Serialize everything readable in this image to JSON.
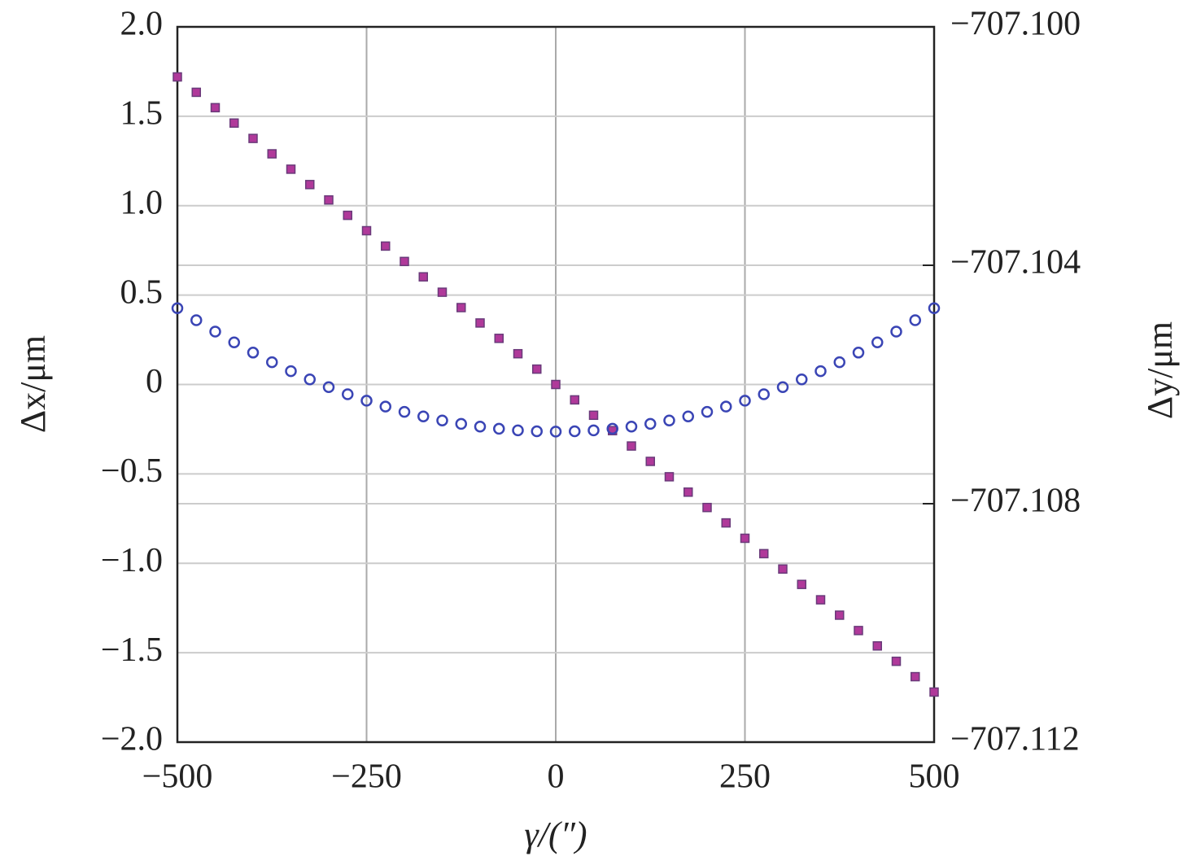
{
  "chart_data": {
    "type": "scatter",
    "xlabel": "γ/(″)",
    "ylabel": "Δx/μm",
    "y2label": "Δy/μm",
    "xlim": [
      -500,
      500
    ],
    "xticks": [
      {
        "value": -500,
        "label": "−500"
      },
      {
        "value": -250,
        "label": "−250"
      },
      0,
      250,
      500
    ],
    "ylim": [
      -2.0,
      2.0
    ],
    "yticks": [
      {
        "value": -2.0,
        "label": "−2.0"
      },
      {
        "value": -1.5,
        "label": "−1.5"
      },
      {
        "value": -1.0,
        "label": "−1.0"
      },
      {
        "value": -0.5,
        "label": "−0.5"
      },
      0,
      0.5,
      {
        "value": 1.0,
        "label": "1.0"
      },
      1.5,
      {
        "value": 2.0,
        "label": "2.0"
      }
    ],
    "y2lim": [
      -707.112,
      -707.1
    ],
    "y2ticks": [
      {
        "value": -707.112,
        "label": "−707.112"
      },
      {
        "value": -707.108,
        "label": "−707.108"
      },
      {
        "value": -707.104,
        "label": "−707.104"
      },
      {
        "value": -707.1,
        "label": "−707.100"
      }
    ],
    "grid": true,
    "x": [
      -500,
      -475,
      -450,
      -425,
      -400,
      -375,
      -350,
      -325,
      -300,
      -275,
      -250,
      -225,
      -200,
      -175,
      -150,
      -125,
      -100,
      -75,
      -50,
      -25,
      0,
      25,
      50,
      75,
      100,
      125,
      150,
      175,
      200,
      225,
      250,
      275,
      300,
      325,
      350,
      375,
      400,
      425,
      450,
      475,
      500
    ],
    "series": [
      {
        "name": "Δx",
        "color": "#b0399a",
        "marker": "square",
        "values": [
          1.72,
          1.634,
          1.548,
          1.462,
          1.376,
          1.29,
          1.204,
          1.118,
          1.032,
          0.946,
          0.86,
          0.774,
          0.688,
          0.602,
          0.516,
          0.43,
          0.344,
          0.258,
          0.172,
          0.086,
          0,
          -0.086,
          -0.172,
          -0.258,
          -0.344,
          -0.43,
          -0.516,
          -0.602,
          -0.688,
          -0.774,
          -0.86,
          -0.946,
          -1.032,
          -1.118,
          -1.204,
          -1.29,
          -1.376,
          -1.462,
          -1.548,
          -1.634,
          -1.72
        ]
      },
      {
        "name": "Δy",
        "color": "#3a45b5",
        "marker": "circle",
        "axis": "y2",
        "values": [
          -707.10472,
          -707.104922,
          -707.105113,
          -707.105294,
          -707.105465,
          -707.105626,
          -707.105776,
          -707.105915,
          -707.106045,
          -707.106164,
          -707.106272,
          -707.106371,
          -707.106459,
          -707.106536,
          -707.106604,
          -707.106661,
          -707.106707,
          -707.106743,
          -707.106769,
          -707.106785,
          -707.10679,
          -707.106785,
          -707.106769,
          -707.106743,
          -707.106707,
          -707.106661,
          -707.106604,
          -707.106536,
          -707.106459,
          -707.106371,
          -707.106272,
          -707.106164,
          -707.106045,
          -707.105915,
          -707.105776,
          -707.105626,
          -707.105465,
          -707.105294,
          -707.105113,
          -707.104922,
          -707.10472
        ]
      }
    ]
  }
}
